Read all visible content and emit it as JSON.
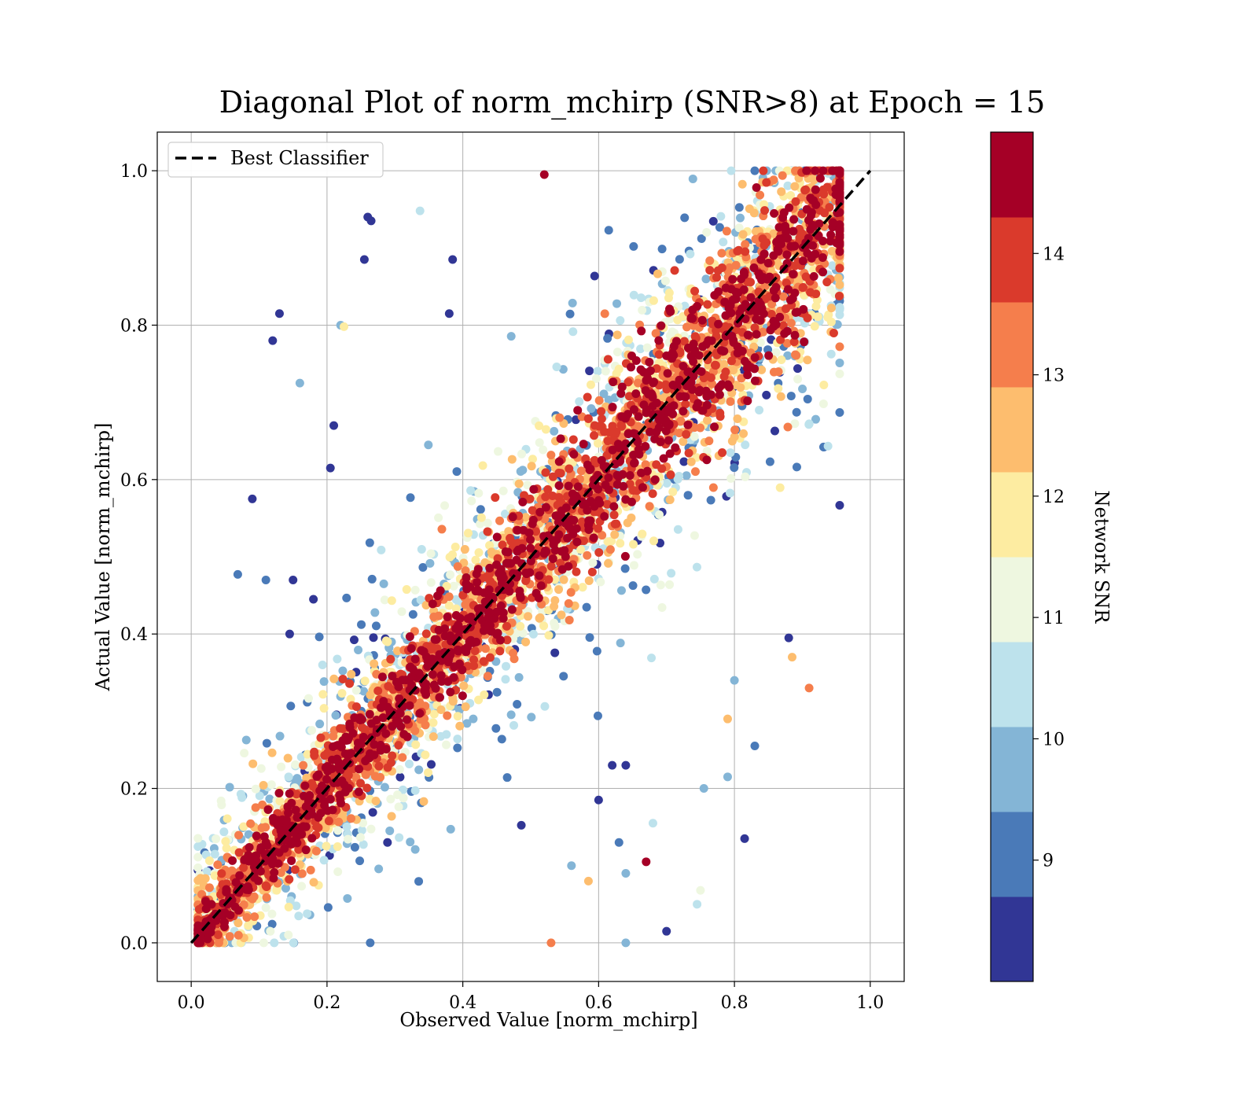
{
  "chart_data": {
    "type": "scatter",
    "title": "Diagonal Plot of norm_mchirp (SNR>8) at Epoch = 15",
    "xlabel": "Observed Value [norm_mchirp]",
    "ylabel": "Actual Value [norm_mchirp]",
    "xlim": [
      -0.05,
      1.05
    ],
    "ylim": [
      -0.05,
      1.05
    ],
    "xticks": [
      "0.0",
      "0.2",
      "0.4",
      "0.6",
      "0.8",
      "1.0"
    ],
    "yticks": [
      "0.0",
      "0.2",
      "0.4",
      "0.6",
      "0.8",
      "1.0"
    ],
    "grid": true,
    "legend": {
      "placement": "top-left",
      "entries": [
        "Best Classifier"
      ]
    },
    "reference_line": {
      "name": "Best Classifier",
      "style": "dashed",
      "color": "#000000",
      "x": [
        0,
        1
      ],
      "y": [
        0,
        1
      ]
    },
    "colorbar": {
      "label": "Network SNR",
      "ticks": [
        "9",
        "10",
        "11",
        "12",
        "13",
        "14"
      ],
      "range": [
        8,
        15
      ],
      "colors": [
        "#313695",
        "#4575b4",
        "#74add1",
        "#abd9e9",
        "#e0f3f8",
        "#ffffbf",
        "#fee090",
        "#fdae61",
        "#f46d43",
        "#d73027",
        "#a50026"
      ],
      "bins": [
        "#313695",
        "#4a7ab8",
        "#84b5d6",
        "#bde2ec",
        "#eef7e0",
        "#fdeca1",
        "#fdbd6e",
        "#f57e4c",
        "#da3a2c",
        "#a50026"
      ]
    },
    "series": [
      {
        "name": "Network SNR",
        "points": [
          {
            "x": 0.26,
            "y": 0.94,
            "snr": 8.2
          },
          {
            "x": 0.265,
            "y": 0.935,
            "snr": 8.3
          },
          {
            "x": 0.255,
            "y": 0.885,
            "snr": 8.4
          },
          {
            "x": 0.337,
            "y": 0.948,
            "snr": 10.5
          },
          {
            "x": 0.13,
            "y": 0.815,
            "snr": 8.5
          },
          {
            "x": 0.12,
            "y": 0.78,
            "snr": 8.3
          },
          {
            "x": 0.22,
            "y": 0.8,
            "snr": 9.8
          },
          {
            "x": 0.225,
            "y": 0.798,
            "snr": 11.8
          },
          {
            "x": 0.16,
            "y": 0.725,
            "snr": 9.6
          },
          {
            "x": 0.21,
            "y": 0.67,
            "snr": 8.4
          },
          {
            "x": 0.205,
            "y": 0.615,
            "snr": 8.6
          },
          {
            "x": 0.09,
            "y": 0.575,
            "snr": 8.3
          },
          {
            "x": 0.385,
            "y": 0.885,
            "snr": 8.2
          },
          {
            "x": 0.38,
            "y": 0.815,
            "snr": 8.6
          },
          {
            "x": 0.11,
            "y": 0.47,
            "snr": 9.3
          },
          {
            "x": 0.15,
            "y": 0.47,
            "snr": 8.4
          },
          {
            "x": 0.18,
            "y": 0.445,
            "snr": 8.7
          },
          {
            "x": 0.145,
            "y": 0.4,
            "snr": 8.5
          },
          {
            "x": 0.52,
            "y": 0.995,
            "snr": 14.9
          },
          {
            "x": 0.955,
            "y": 0.905,
            "snr": 14.9
          },
          {
            "x": 0.815,
            "y": 0.135,
            "snr": 8.3
          },
          {
            "x": 0.83,
            "y": 0.255,
            "snr": 9.1
          },
          {
            "x": 0.79,
            "y": 0.215,
            "snr": 9.7
          },
          {
            "x": 0.755,
            "y": 0.2,
            "snr": 9.5
          },
          {
            "x": 0.7,
            "y": 0.015,
            "snr": 8.2
          },
          {
            "x": 0.91,
            "y": 0.33,
            "snr": 12.9
          },
          {
            "x": 0.885,
            "y": 0.37,
            "snr": 12.6
          },
          {
            "x": 0.88,
            "y": 0.395,
            "snr": 8.4
          },
          {
            "x": 0.745,
            "y": 0.05,
            "snr": 10.3
          },
          {
            "x": 0.75,
            "y": 0.068,
            "snr": 11.2
          },
          {
            "x": 0.8,
            "y": 0.34,
            "snr": 9.9
          },
          {
            "x": 0.79,
            "y": 0.29,
            "snr": 12.8
          },
          {
            "x": 0.68,
            "y": 0.155,
            "snr": 10.6
          },
          {
            "x": 0.67,
            "y": 0.105,
            "snr": 14.3
          },
          {
            "x": 0.64,
            "y": 0.09,
            "snr": 9.9
          },
          {
            "x": 0.63,
            "y": 0.13,
            "snr": 8.9
          },
          {
            "x": 0.56,
            "y": 0.1,
            "snr": 9.5
          },
          {
            "x": 0.585,
            "y": 0.08,
            "snr": 12.4
          },
          {
            "x": 0.53,
            "y": 0.0,
            "snr": 13.5
          },
          {
            "x": 0.64,
            "y": 0.0,
            "snr": 9.6
          },
          {
            "x": 0.6,
            "y": 0.185,
            "snr": 8.5
          },
          {
            "x": 0.62,
            "y": 0.23,
            "snr": 8.4
          },
          {
            "x": 0.64,
            "y": 0.23,
            "snr": 8.3
          }
        ]
      }
    ]
  }
}
